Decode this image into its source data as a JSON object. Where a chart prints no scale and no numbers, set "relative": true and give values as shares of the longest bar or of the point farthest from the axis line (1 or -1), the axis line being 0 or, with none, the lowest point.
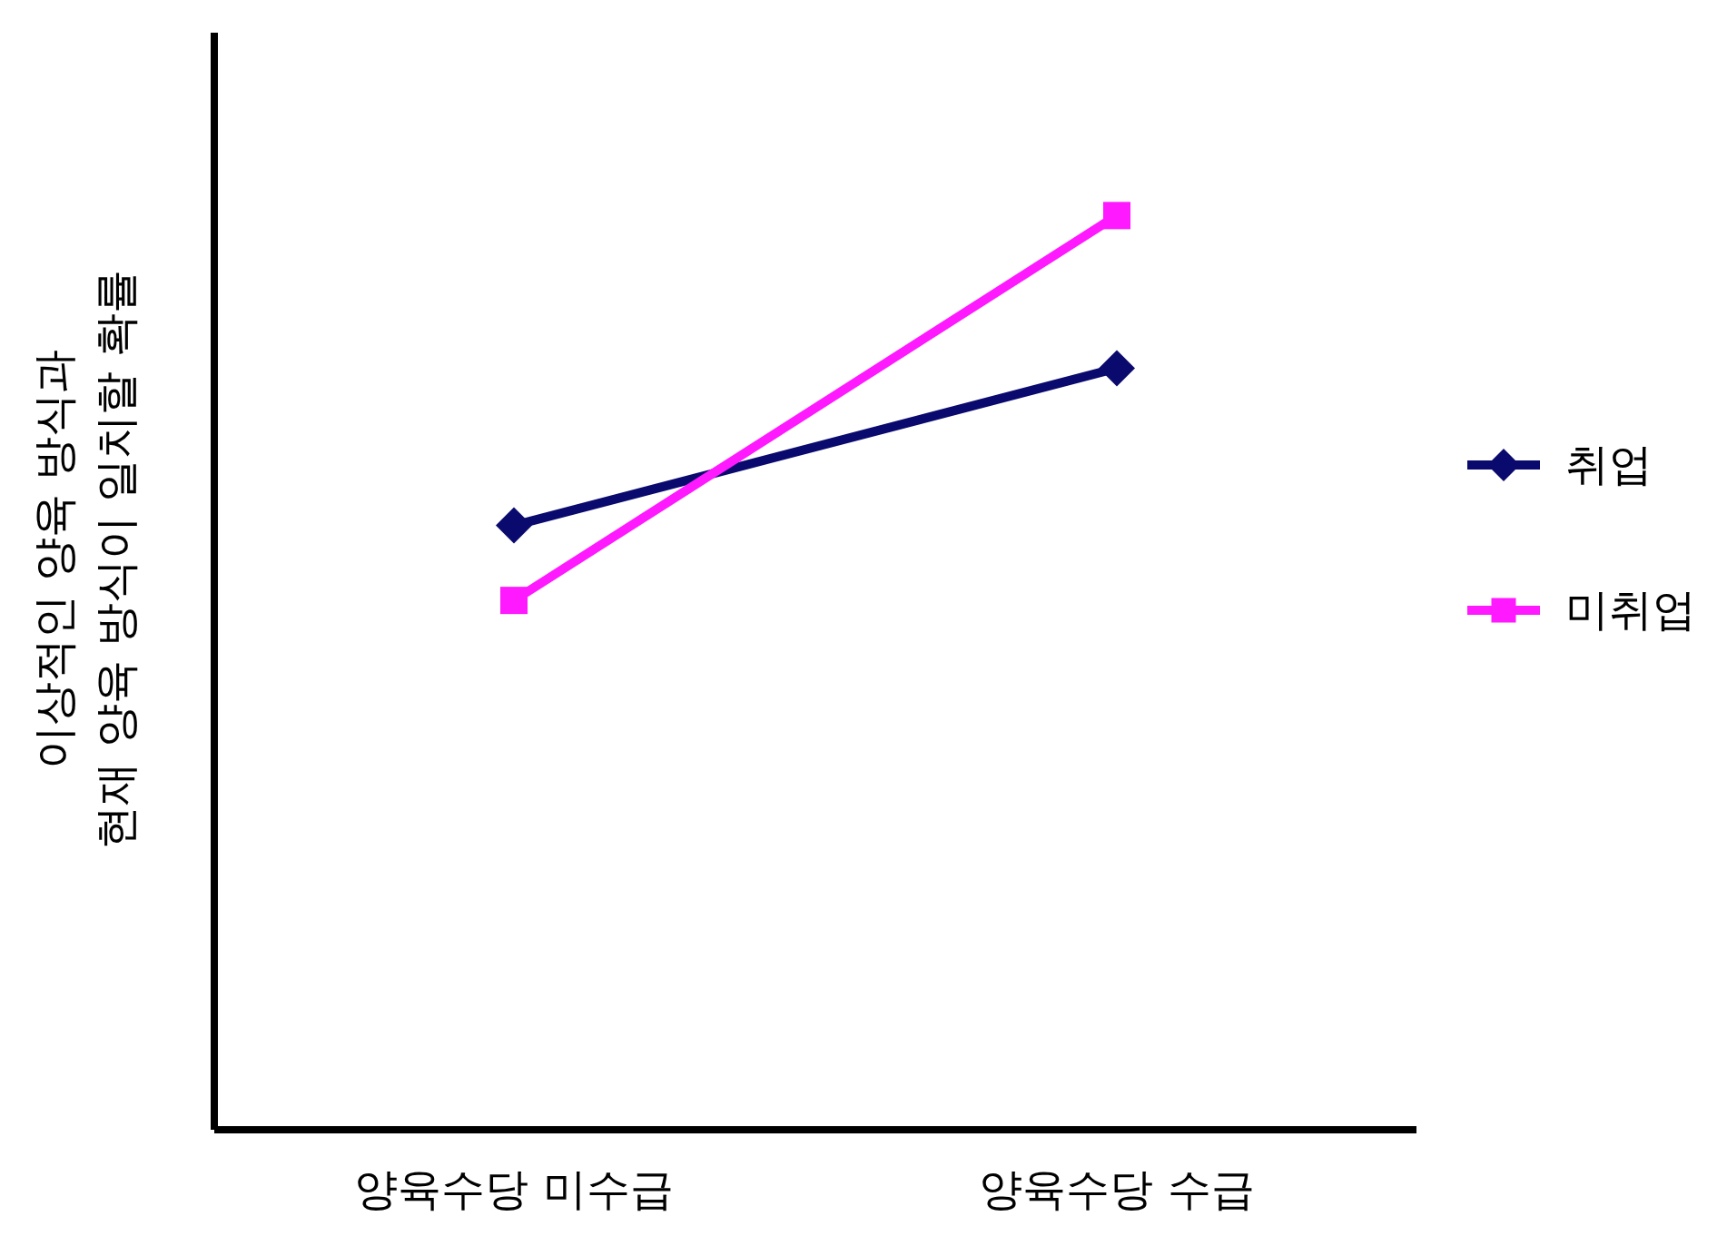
{
  "chart_data": {
    "type": "line",
    "ylabel": "이상적인 양육 방식과\n현재 양육 방식이 일치할 확률",
    "categories": [
      "양육수당 미수급",
      "양육수당 수급"
    ],
    "relative": true,
    "legend": "right",
    "grid": false,
    "series": [
      {
        "name": "취업",
        "color": "#0a0a6e",
        "values": [
          0.661,
          0.833
        ],
        "marker": "diamond"
      },
      {
        "name": "미취업",
        "color": "#ff19ff",
        "values": [
          0.579,
          1
        ],
        "marker": "square"
      }
    ]
  }
}
